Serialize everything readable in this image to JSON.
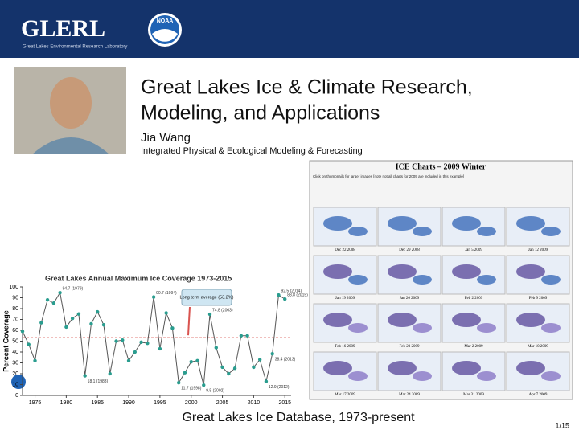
{
  "header": {
    "logo": "GLERL",
    "tagline": "Great Lakes Environmental Research Laboratory",
    "agency": "NOAA"
  },
  "title_lines": [
    "Great Lakes Ice & Climate Research,",
    "Modeling, and Applications"
  ],
  "author": "Jia Wang",
  "affiliation": "Integrated Physical & Ecological Modeling & Forecasting",
  "chart_data": {
    "type": "line",
    "title": "Great Lakes Annual Maximum Ice Coverage 1973-2015",
    "y_label": "Percent Coverage",
    "x": [
      1973,
      1974,
      1975,
      1976,
      1977,
      1978,
      1979,
      1980,
      1981,
      1982,
      1983,
      1984,
      1985,
      1986,
      1987,
      1988,
      1989,
      1990,
      1991,
      1992,
      1993,
      1994,
      1995,
      1996,
      1997,
      1998,
      1999,
      2000,
      2001,
      2002,
      2003,
      2004,
      2005,
      2006,
      2007,
      2008,
      2009,
      2010,
      2011,
      2012,
      2013,
      2014,
      2015
    ],
    "series": [
      {
        "name": "Annual maximum ice coverage",
        "color": "#555555",
        "marker_color": "#2a9d8f",
        "values": [
          59,
          47,
          32,
          67,
          88,
          85,
          94.7,
          63,
          71,
          75,
          18.1,
          66,
          77,
          65,
          20,
          50,
          51,
          32,
          40,
          49,
          48,
          90.7,
          43,
          76,
          62,
          11.7,
          21,
          31,
          32,
          9.5,
          74.8,
          44,
          26,
          20,
          25,
          55,
          55,
          26,
          33,
          12.9,
          38.4,
          92.5,
          88.8
        ]
      }
    ],
    "xlim": [
      1973,
      2016
    ],
    "xticks": [
      1975,
      1980,
      1985,
      1990,
      1995,
      2000,
      2005,
      2010,
      2015
    ],
    "ylim": [
      0,
      100
    ],
    "yticks": [
      0,
      10,
      20,
      30,
      40,
      50,
      60,
      70,
      80,
      90,
      100
    ],
    "average": {
      "value": 53.2,
      "label": "Long term average (53.2%)",
      "color": "#d9534f"
    },
    "annotations": [
      {
        "x": 1979,
        "label": "94.7 (1979)"
      },
      {
        "x": 1983,
        "label": "18.1 (1983)"
      },
      {
        "x": 1994,
        "label": "90.7 (1994)"
      },
      {
        "x": 2003,
        "label": "74.8 (2003)"
      },
      {
        "x": 1998,
        "label": "11.7 (1998)"
      },
      {
        "x": 2002,
        "label": "9.5 (2002)"
      },
      {
        "x": 2014,
        "label": "92.5 (2014)"
      },
      {
        "x": 2015,
        "label": "88.8 (2015)"
      },
      {
        "x": 2013,
        "label": "38.4 (2013)"
      },
      {
        "x": 2012,
        "label": "12.9 (2012)"
      }
    ]
  },
  "ice_charts": {
    "title": "ICE Charts – 2009 Winter",
    "notes": [
      "Click on thumbnails for larger images [note not all charts for 2009 are included in this example]"
    ],
    "dates": [
      "Dec 22 2008",
      "Dec 29 2008",
      "Jan 5 2009",
      "Jan 12 2009",
      "Jan 19 2009",
      "Jan 26 2009",
      "Feb 2 2009",
      "Feb 9 2009",
      "Feb 16 2009",
      "Feb 23 2009",
      "Mar 2 2009",
      "Mar 10 2009",
      "Mar 17 2009",
      "Mar 24 2009",
      "Mar 31 2009",
      "Apr 7 2009"
    ]
  },
  "caption": "Great Lakes Ice Database, 1973-present",
  "page": "1/15"
}
